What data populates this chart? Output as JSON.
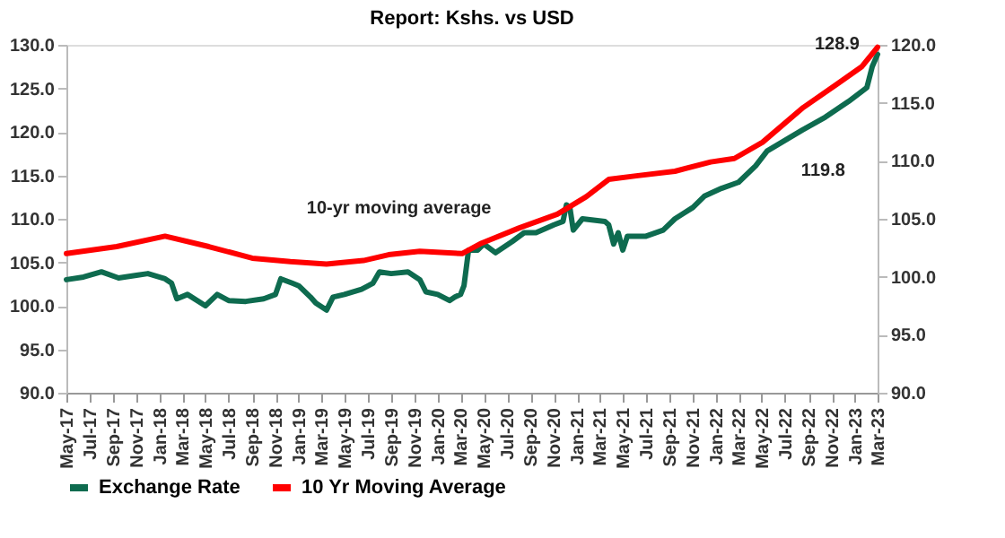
{
  "chart_data": {
    "type": "line",
    "title": "Report: Kshs. vs USD",
    "series": [
      {
        "name": "Exchange Rate",
        "color": "#0e6b4f",
        "x": [
          "2017-05-01",
          "2017-06-15",
          "2017-08-01",
          "2017-09-15",
          "2017-11-01",
          "2017-12-01",
          "2018-01-15",
          "2018-02-01",
          "2018-02-15",
          "2018-03-15",
          "2018-05-01",
          "2018-06-01",
          "2018-07-01",
          "2018-08-15",
          "2018-10-01",
          "2018-11-01",
          "2018-11-15",
          "2018-12-15",
          "2019-01-01",
          "2019-02-01",
          "2019-02-15",
          "2019-03-15",
          "2019-04-01",
          "2019-05-01",
          "2019-06-15",
          "2019-07-15",
          "2019-08-01",
          "2019-09-01",
          "2019-10-15",
          "2019-11-15",
          "2019-12-01",
          "2020-01-01",
          "2020-02-01",
          "2020-02-15",
          "2020-03-01",
          "2020-03-10",
          "2020-03-22",
          "2020-04-15",
          "2020-05-01",
          "2020-06-01",
          "2020-07-15",
          "2020-08-15",
          "2020-09-15",
          "2020-11-01",
          "2020-11-25",
          "2020-12-04",
          "2020-12-13",
          "2020-12-22",
          "2021-01-15",
          "2021-03-15",
          "2021-03-25",
          "2021-04-07",
          "2021-04-19",
          "2021-05-01",
          "2021-05-13",
          "2021-07-01",
          "2021-08-15",
          "2021-09-15",
          "2021-11-01",
          "2021-12-01",
          "2022-01-15",
          "2022-03-01",
          "2022-04-15",
          "2022-05-15",
          "2022-08-15",
          "2022-10-15",
          "2022-12-15",
          "2023-02-01",
          "2023-02-15",
          "2023-03-01"
        ],
        "values": [
          103.0,
          103.3,
          103.9,
          103.2,
          103.5,
          103.7,
          103.1,
          102.6,
          100.8,
          101.3,
          100.0,
          101.3,
          100.6,
          100.5,
          100.8,
          101.3,
          103.1,
          102.6,
          102.3,
          101.0,
          100.3,
          99.5,
          101.0,
          101.3,
          101.9,
          102.6,
          103.9,
          103.7,
          103.9,
          103.0,
          101.6,
          101.3,
          100.6,
          101.0,
          101.3,
          102.3,
          106.4,
          106.4,
          107.1,
          106.1,
          107.4,
          108.4,
          108.4,
          109.3,
          109.7,
          111.6,
          111.3,
          108.7,
          110.0,
          109.7,
          109.3,
          107.1,
          108.4,
          106.4,
          108.0,
          108.0,
          108.7,
          110.0,
          111.3,
          112.6,
          113.5,
          114.2,
          116.1,
          117.8,
          120.2,
          121.7,
          123.5,
          125.1,
          127.5,
          128.9
        ]
      },
      {
        "name": "10 Yr Moving Average",
        "color": "#ff0000",
        "axis": "y2",
        "x": [
          "2017-05-01",
          "2017-09-10",
          "2018-01-15",
          "2018-05-10",
          "2018-09-01",
          "2018-12-10",
          "2019-03-15",
          "2019-06-20",
          "2019-08-25",
          "2019-11-15",
          "2020-03-05",
          "2020-04-25",
          "2020-08-01",
          "2020-11-10",
          "2021-01-25",
          "2021-03-25",
          "2021-06-05",
          "2021-09-15",
          "2021-12-18",
          "2022-02-18",
          "2022-05-03",
          "2022-08-18",
          "2022-11-18",
          "2023-01-18",
          "2023-03-01"
        ],
        "values": [
          102.0,
          102.6,
          103.5,
          102.6,
          101.6,
          101.3,
          101.1,
          101.4,
          101.9,
          102.2,
          102.0,
          102.9,
          104.2,
          105.4,
          106.9,
          108.4,
          108.7,
          109.1,
          109.9,
          110.2,
          111.6,
          114.6,
          116.7,
          118.1,
          119.8
        ]
      }
    ],
    "xlim": [
      "2017-05-01",
      "2023-03-01"
    ],
    "xticks": [
      {
        "value": "2017-05-01",
        "label": "May-17"
      },
      {
        "value": "2017-07-01",
        "label": "Jul-17"
      },
      {
        "value": "2017-09-01",
        "label": "Sep-17"
      },
      {
        "value": "2017-11-01",
        "label": "Nov-17"
      },
      {
        "value": "2018-01-01",
        "label": "Jan-18"
      },
      {
        "value": "2018-03-01",
        "label": "Mar-18"
      },
      {
        "value": "2018-05-01",
        "label": "May-18"
      },
      {
        "value": "2018-07-01",
        "label": "Jul-18"
      },
      {
        "value": "2018-09-01",
        "label": "Sep-18"
      },
      {
        "value": "2018-11-01",
        "label": "Nov-18"
      },
      {
        "value": "2019-01-01",
        "label": "Jan-19"
      },
      {
        "value": "2019-03-01",
        "label": "Mar-19"
      },
      {
        "value": "2019-05-01",
        "label": "May-19"
      },
      {
        "value": "2019-07-01",
        "label": "Jul-19"
      },
      {
        "value": "2019-09-01",
        "label": "Sep-19"
      },
      {
        "value": "2019-11-01",
        "label": "Nov-19"
      },
      {
        "value": "2020-01-01",
        "label": "Jan-20"
      },
      {
        "value": "2020-03-01",
        "label": "Mar-20"
      },
      {
        "value": "2020-05-01",
        "label": "May-20"
      },
      {
        "value": "2020-07-01",
        "label": "Jul-20"
      },
      {
        "value": "2020-09-01",
        "label": "Sep-20"
      },
      {
        "value": "2020-11-01",
        "label": "Nov-20"
      },
      {
        "value": "2021-01-01",
        "label": "Jan-21"
      },
      {
        "value": "2021-03-01",
        "label": "Mar-21"
      },
      {
        "value": "2021-05-01",
        "label": "May-21"
      },
      {
        "value": "2021-07-01",
        "label": "Jul-21"
      },
      {
        "value": "2021-09-01",
        "label": "Sep-21"
      },
      {
        "value": "2021-11-01",
        "label": "Nov-21"
      },
      {
        "value": "2022-01-01",
        "label": "Jan-22"
      },
      {
        "value": "2022-03-01",
        "label": "Mar-22"
      },
      {
        "value": "2022-05-01",
        "label": "May-22"
      },
      {
        "value": "2022-07-01",
        "label": "Jul-22"
      },
      {
        "value": "2022-09-01",
        "label": "Sep-22"
      },
      {
        "value": "2022-11-01",
        "label": "Nov-22"
      },
      {
        "value": "2023-01-01",
        "label": "Jan-23"
      },
      {
        "value": "2023-03-01",
        "label": "Mar-23"
      }
    ],
    "ylim": [
      90,
      130
    ],
    "yticks": [
      {
        "value": 90,
        "label": "90.0"
      },
      {
        "value": 95,
        "label": "95.0"
      },
      {
        "value": 100,
        "label": "100.0"
      },
      {
        "value": 105,
        "label": "105.0"
      },
      {
        "value": 110,
        "label": "110.0"
      },
      {
        "value": 115,
        "label": "115.0"
      },
      {
        "value": 120,
        "label": "120.0"
      },
      {
        "value": 125,
        "label": "125.0"
      },
      {
        "value": 130,
        "label": "130.0"
      }
    ],
    "y2lim": [
      90,
      120
    ],
    "y2ticks": [
      {
        "value": 90,
        "label": "90.0"
      },
      {
        "value": 95,
        "label": "95.0"
      },
      {
        "value": 100,
        "label": "100.0"
      },
      {
        "value": 105,
        "label": "105.0"
      },
      {
        "value": 110,
        "label": "110.0"
      },
      {
        "value": 115,
        "label": "115.0"
      },
      {
        "value": 120,
        "label": "120.0"
      }
    ],
    "annotations": [
      {
        "text": "128.9",
        "x": "2023-03-01",
        "y": 128.9
      },
      "119.8",
      "10-yr moving average"
    ],
    "legend": "bottom",
    "grid": false,
    "marker": "none",
    "line_style": "solid"
  }
}
